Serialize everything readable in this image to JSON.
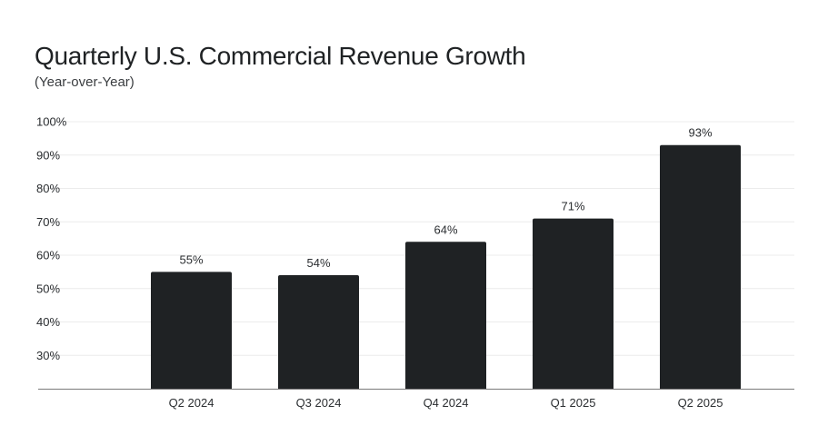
{
  "chart_data": {
    "type": "bar",
    "title": "Quarterly U.S. Commercial Revenue Growth",
    "subtitle": "(Year-over-Year)",
    "xlabel": "",
    "ylabel": "",
    "categories": [
      "Q2 2024",
      "Q3 2024",
      "Q4 2024",
      "Q1 2025",
      "Q2 2025"
    ],
    "values": [
      55,
      54,
      64,
      71,
      93
    ],
    "data_labels": [
      "55%",
      "54%",
      "64%",
      "71%",
      "93%"
    ],
    "y_ticks": [
      30,
      40,
      50,
      60,
      70,
      80,
      90,
      100
    ],
    "y_tick_labels": [
      "30%",
      "40%",
      "50%",
      "60%",
      "70%",
      "80%",
      "90%",
      "100%"
    ],
    "ylim": [
      20,
      100
    ],
    "grid": true,
    "legend": "none",
    "colors": {
      "bar": "#1f2224",
      "grid": "#ececec",
      "axis": "#7a7a7a",
      "text": "#2a2d30"
    }
  }
}
